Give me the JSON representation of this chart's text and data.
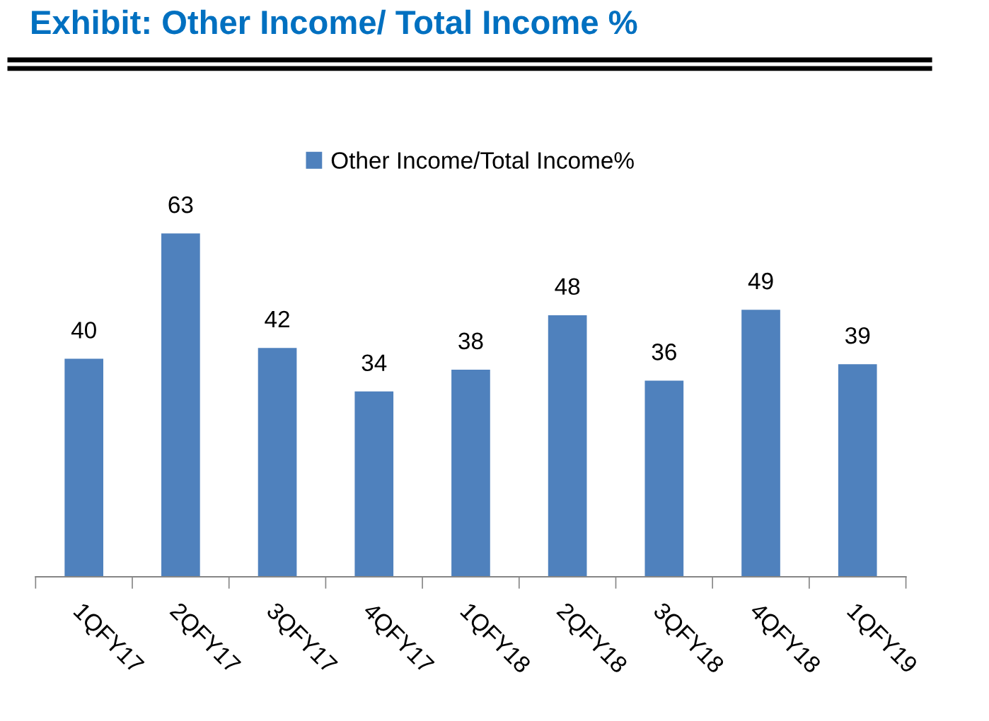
{
  "chart_data": {
    "type": "bar",
    "title": "Exhibit: Other Income/ Total Income %",
    "categories": [
      "1QFY17",
      "2QFY17",
      "3QFY17",
      "4QFY17",
      "1QFY18",
      "2QFY18",
      "3QFY18",
      "4QFY18",
      "1QFY19"
    ],
    "series": [
      {
        "name": "Other Income/Total Income%",
        "color": "#4f81bd",
        "values": [
          40,
          63,
          42,
          34,
          38,
          48,
          36,
          49,
          39
        ]
      }
    ],
    "data_labels": true,
    "legend": "top",
    "grid": false
  }
}
